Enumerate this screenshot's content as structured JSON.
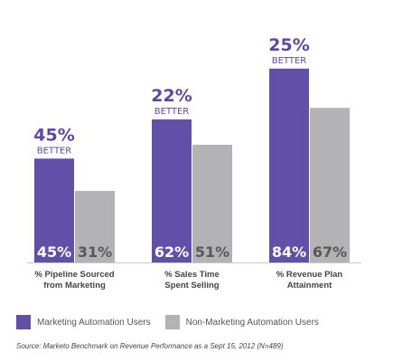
{
  "chart_data": {
    "type": "bar",
    "categories": [
      [
        "% Pipeline Sourced",
        "from Marketing"
      ],
      [
        "% Sales Time",
        "Spent Selling"
      ],
      [
        "% Revenue Plan",
        "Attainment"
      ]
    ],
    "series": [
      {
        "name": "Marketing Automation Users",
        "color": "#6050a8",
        "values": [
          45,
          62,
          84
        ]
      },
      {
        "name": "Non-Marketing Automation Users",
        "color": "#b3b3b6",
        "values": [
          31,
          51,
          67
        ]
      }
    ],
    "value_labels": [
      [
        "45%",
        "31%"
      ],
      [
        "62%",
        "51%"
      ],
      [
        "84%",
        "67%"
      ]
    ],
    "annotations": [
      {
        "pct": "45%",
        "word": "BETTER"
      },
      {
        "pct": "22%",
        "word": "BETTER"
      },
      {
        "pct": "25%",
        "word": "BETTER"
      }
    ],
    "ylim": [
      0,
      100
    ],
    "grid": false,
    "legend_position": "bottom-left",
    "annotation_color": "#5b4aa2"
  },
  "source": "Source: Marketo Benchmark on Revenue Performance as a Sept 15, 2012 (N=489)"
}
